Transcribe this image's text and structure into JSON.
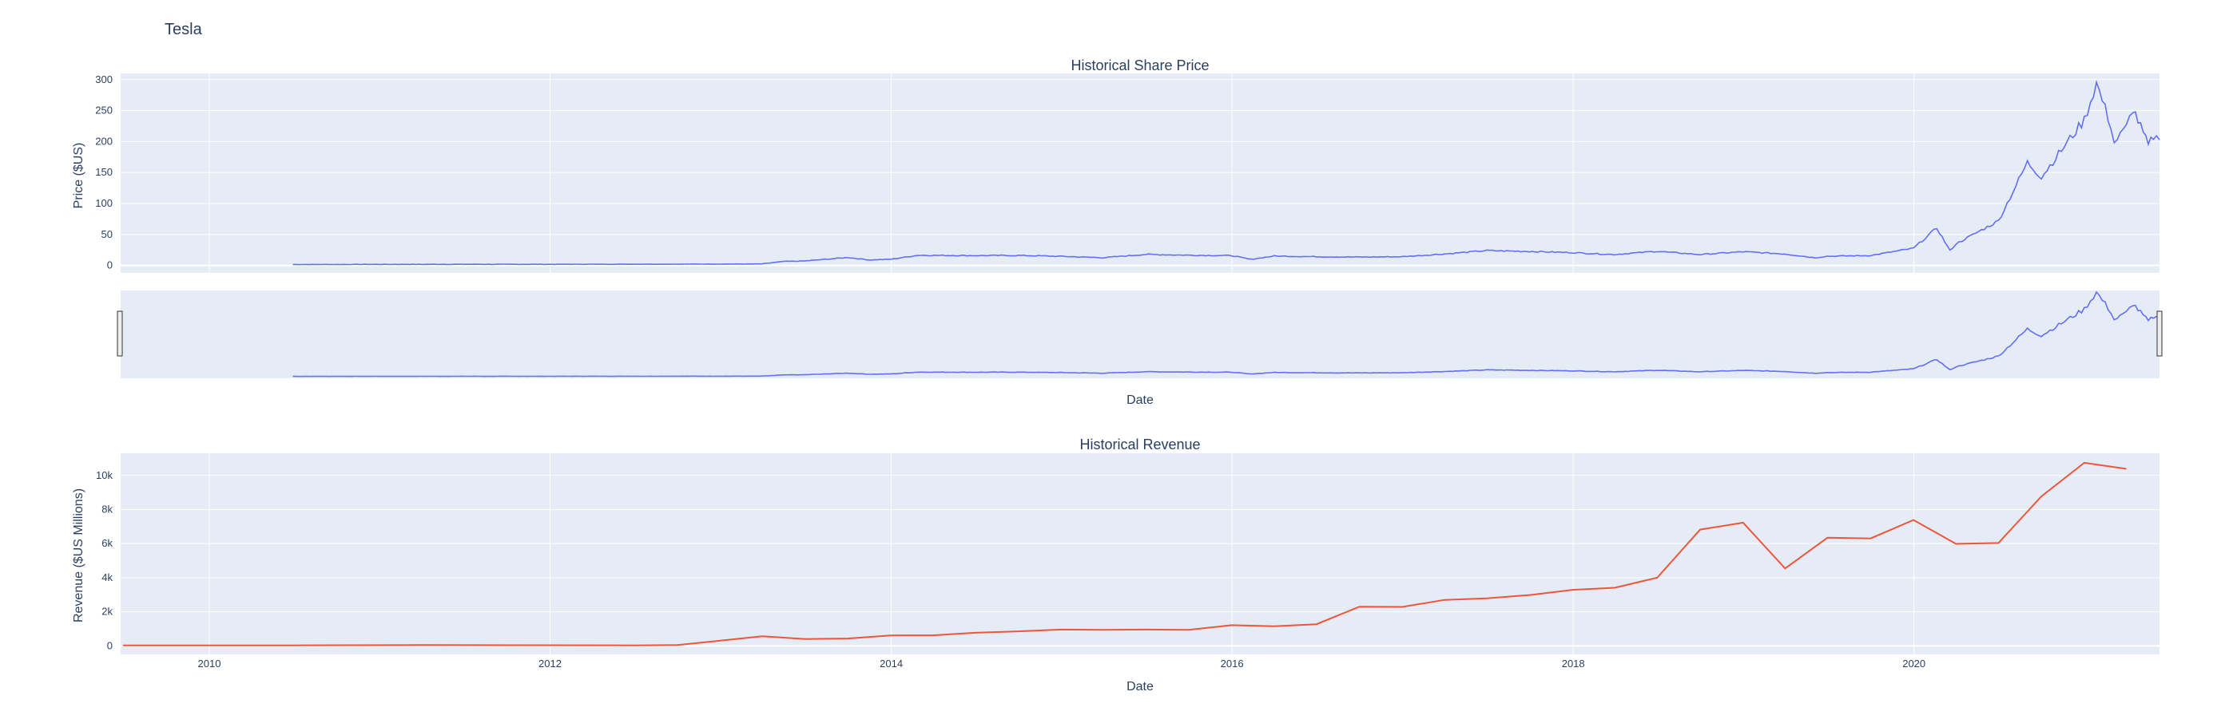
{
  "title": "Tesla",
  "colors": {
    "price": "#636efa",
    "revenue": "#ef553b",
    "plot_bg": "#e5ecf6",
    "text": "#2a3f5f"
  },
  "chart_data": [
    {
      "type": "line",
      "title": "Historical Share Price",
      "xlabel": "Date",
      "ylabel": "Price ($US)",
      "ylim": [
        -12,
        310
      ],
      "xlim": [
        "2009-06-25",
        "2021-06-10"
      ],
      "yticks": [
        0,
        50,
        100,
        150,
        200,
        250,
        300
      ],
      "ytick_labels": [
        "0",
        "50",
        "100",
        "150",
        "200",
        "250",
        "300"
      ],
      "grid": true,
      "rangeslider": true,
      "series": [
        {
          "x": [
            "2010-06-29",
            "2010-12-31",
            "2011-06-30",
            "2011-12-30",
            "2012-06-29",
            "2012-12-31",
            "2013-03-28",
            "2013-05-15",
            "2013-06-28",
            "2013-09-30",
            "2013-11-15",
            "2013-12-31",
            "2014-02-27",
            "2014-06-30",
            "2014-09-30",
            "2014-12-31",
            "2015-03-31",
            "2015-06-30",
            "2015-09-30",
            "2015-12-31",
            "2016-02-10",
            "2016-03-31",
            "2016-06-30",
            "2016-09-30",
            "2016-12-30",
            "2017-03-31",
            "2017-06-30",
            "2017-09-29",
            "2017-12-29",
            "2018-03-29",
            "2018-06-29",
            "2018-09-28",
            "2018-12-31",
            "2019-03-29",
            "2019-06-03",
            "2019-06-28",
            "2019-09-30",
            "2019-12-31",
            "2020-02-19",
            "2020-03-18",
            "2020-03-31",
            "2020-06-30",
            "2020-08-31",
            "2020-09-30",
            "2020-12-31",
            "2021-01-26",
            "2021-02-26",
            "2021-03-05",
            "2021-03-31",
            "2021-04-14",
            "2021-05-17",
            "2021-05-28",
            "2021-06-10"
          ],
          "y": [
            1.6,
            1.8,
            1.9,
            1.9,
            2.1,
            2.3,
            2.4,
            6.5,
            7.2,
            12.9,
            9.0,
            10.0,
            16.5,
            16.0,
            16.2,
            14.8,
            12.6,
            17.9,
            16.6,
            16.0,
            9.9,
            15.3,
            14.2,
            13.6,
            14.2,
            18.6,
            24.1,
            22.7,
            20.8,
            17.7,
            22.9,
            17.7,
            22.2,
            18.7,
            12.5,
            14.9,
            16.1,
            27.9,
            60.5,
            24.0,
            34.9,
            72.0,
            166.1,
            143.0,
            235.2,
            294.0,
            225.2,
            198.0,
            222.6,
            254.0,
            193.0,
            208.4,
            203.0
          ]
        }
      ]
    },
    {
      "type": "line",
      "title": "Historical Revenue",
      "xlabel": "Date",
      "ylabel": "Revenue ($US Millions)",
      "ylim": [
        -500,
        11300
      ],
      "xlim": [
        "2009-06-25",
        "2021-06-10"
      ],
      "xticks": [
        "2010-01-01",
        "2012-01-01",
        "2014-01-01",
        "2016-01-01",
        "2018-01-01",
        "2020-01-01"
      ],
      "xtick_labels": [
        "2010",
        "2012",
        "2014",
        "2016",
        "2018",
        "2020"
      ],
      "yticks": [
        0,
        2000,
        4000,
        6000,
        8000,
        10000
      ],
      "ytick_labels": [
        "0",
        "2k",
        "4k",
        "6k",
        "8k",
        "10k"
      ],
      "grid": true,
      "series": [
        {
          "x": [
            "2009-06-30",
            "2010-06-30",
            "2011-03-31",
            "2012-06-30",
            "2012-09-30",
            "2012-12-31",
            "2013-03-31",
            "2013-06-30",
            "2013-09-30",
            "2013-12-31",
            "2014-03-31",
            "2014-06-30",
            "2014-09-30",
            "2014-12-31",
            "2015-03-31",
            "2015-06-30",
            "2015-09-30",
            "2015-12-31",
            "2016-03-31",
            "2016-06-30",
            "2016-09-30",
            "2016-12-31",
            "2017-03-31",
            "2017-06-30",
            "2017-09-30",
            "2017-12-31",
            "2018-03-31",
            "2018-06-30",
            "2018-09-30",
            "2018-12-31",
            "2019-03-31",
            "2019-06-30",
            "2019-09-30",
            "2019-12-31",
            "2020-03-31",
            "2020-06-30",
            "2020-09-30",
            "2020-12-31",
            "2021-03-31"
          ],
          "y": [
            27,
            28,
            49,
            27,
            50,
            306,
            562,
            405,
            431,
            615,
            621,
            769,
            852,
            956,
            940,
            955,
            937,
            1214,
            1147,
            1270,
            2298,
            2285,
            2696,
            2790,
            2985,
            3288,
            3409,
            4002,
            6824,
            7226,
            4541,
            6350,
            6303,
            7384,
            5985,
            6036,
            8771,
            10744,
            10389
          ]
        }
      ]
    }
  ]
}
